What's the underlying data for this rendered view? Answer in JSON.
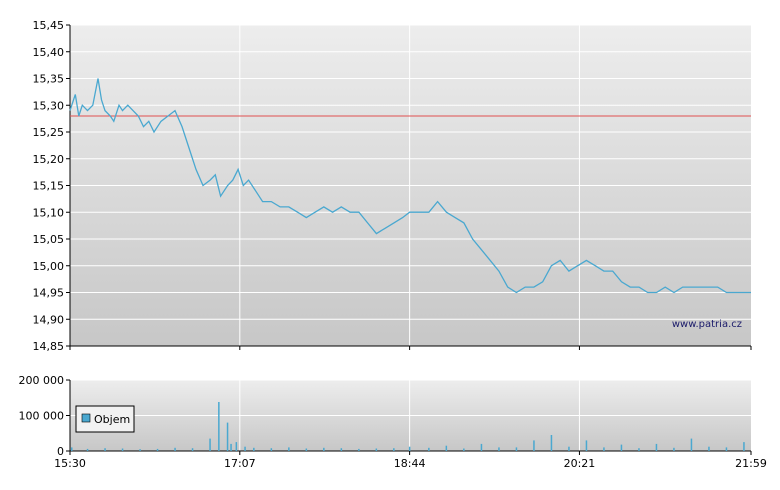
{
  "chart_data": [
    {
      "type": "line",
      "watermark": "www.patria.cz",
      "colors": {
        "line": "#4aa8d0",
        "reference_line": "#e05050",
        "grid": "#ffffff",
        "background_top": "#ededed",
        "background_bottom": "#c7c7c7"
      },
      "ylim": [
        14.85,
        15.45
      ],
      "y_ticks": [
        "15,45",
        "15,40",
        "15,35",
        "15,30",
        "15,25",
        "15,20",
        "15,15",
        "15,10",
        "15,05",
        "15,00",
        "14,95",
        "14,90",
        "14,85"
      ],
      "x_ticks": [
        "15:30",
        "17:07",
        "18:44",
        "20:21",
        "21:59"
      ],
      "reference_value": 15.28,
      "grid": true,
      "series": [
        {
          "x": [
            "15:30",
            "15:33",
            "15:35",
            "15:37",
            "15:40",
            "15:43",
            "15:46",
            "15:48",
            "15:50",
            "15:53",
            "15:55",
            "15:58",
            "16:00",
            "16:03",
            "16:06",
            "16:09",
            "16:12",
            "16:15",
            "16:18",
            "16:22",
            "16:26",
            "16:30",
            "16:34",
            "16:38",
            "16:42",
            "16:46",
            "16:50",
            "16:53",
            "16:56",
            "17:00",
            "17:03",
            "17:06",
            "17:09",
            "17:12",
            "17:16",
            "17:20",
            "17:25",
            "17:30",
            "17:35",
            "17:40",
            "17:45",
            "17:50",
            "17:55",
            "18:00",
            "18:05",
            "18:10",
            "18:15",
            "18:20",
            "18:25",
            "18:30",
            "18:35",
            "18:40",
            "18:44",
            "18:50",
            "18:55",
            "19:00",
            "19:05",
            "19:10",
            "19:15",
            "19:20",
            "19:25",
            "19:30",
            "19:35",
            "19:40",
            "19:45",
            "19:50",
            "19:55",
            "20:00",
            "20:05",
            "20:10",
            "20:15",
            "20:20",
            "20:25",
            "20:30",
            "20:35",
            "20:40",
            "20:45",
            "20:50",
            "20:55",
            "21:00",
            "21:05",
            "21:10",
            "21:15",
            "21:20",
            "21:25",
            "21:30",
            "21:35",
            "21:40",
            "21:45",
            "21:50",
            "21:55",
            "21:59"
          ],
          "values": [
            15.29,
            15.32,
            15.28,
            15.3,
            15.29,
            15.3,
            15.35,
            15.31,
            15.29,
            15.28,
            15.27,
            15.3,
            15.29,
            15.3,
            15.29,
            15.28,
            15.26,
            15.27,
            15.25,
            15.27,
            15.28,
            15.29,
            15.26,
            15.22,
            15.18,
            15.15,
            15.16,
            15.17,
            15.13,
            15.15,
            15.16,
            15.18,
            15.15,
            15.16,
            15.14,
            15.12,
            15.12,
            15.11,
            15.11,
            15.1,
            15.09,
            15.1,
            15.11,
            15.1,
            15.11,
            15.1,
            15.1,
            15.08,
            15.06,
            15.07,
            15.08,
            15.09,
            15.1,
            15.1,
            15.1,
            15.12,
            15.1,
            15.09,
            15.08,
            15.05,
            15.03,
            15.01,
            14.99,
            14.96,
            14.95,
            14.96,
            14.96,
            14.97,
            15.0,
            15.01,
            14.99,
            15.0,
            15.01,
            15.0,
            14.99,
            14.99,
            14.97,
            14.96,
            14.96,
            14.95,
            14.95,
            14.96,
            14.95,
            14.96,
            14.96,
            14.96,
            14.96,
            14.96,
            14.95,
            14.95,
            14.95,
            14.95
          ]
        }
      ]
    },
    {
      "type": "bar",
      "ylim": [
        0,
        200000
      ],
      "y_ticks": [
        "200 000",
        "100 000",
        "0"
      ],
      "x_ticks": [
        "15:30",
        "17:07",
        "18:44",
        "20:21",
        "21:59"
      ],
      "legend": "Objem",
      "legend_position": "left",
      "colors": {
        "bar": "#4aa8d0",
        "legend_box": "#4aa8d0"
      },
      "series": [
        {
          "name": "Objem",
          "x": [
            "15:31",
            "15:40",
            "15:50",
            "16:00",
            "16:10",
            "16:20",
            "16:30",
            "16:40",
            "16:50",
            "16:55",
            "17:00",
            "17:02",
            "17:05",
            "17:10",
            "17:15",
            "17:25",
            "17:35",
            "17:45",
            "17:55",
            "18:05",
            "18:15",
            "18:25",
            "18:35",
            "18:44",
            "18:55",
            "19:05",
            "19:15",
            "19:25",
            "19:35",
            "19:45",
            "19:55",
            "20:05",
            "20:15",
            "20:25",
            "20:35",
            "20:45",
            "20:55",
            "21:05",
            "21:15",
            "21:25",
            "21:35",
            "21:45",
            "21:55"
          ],
          "values": [
            10000,
            6000,
            8000,
            7000,
            5000,
            6000,
            9000,
            8000,
            35000,
            138000,
            80000,
            20000,
            25000,
            12000,
            9000,
            8000,
            10000,
            7000,
            9000,
            8000,
            6000,
            7000,
            8000,
            12000,
            9000,
            15000,
            7000,
            20000,
            10000,
            10000,
            30000,
            45000,
            12000,
            30000,
            10000,
            18000,
            8000,
            20000,
            9000,
            35000,
            12000,
            10000,
            25000
          ]
        }
      ]
    }
  ]
}
